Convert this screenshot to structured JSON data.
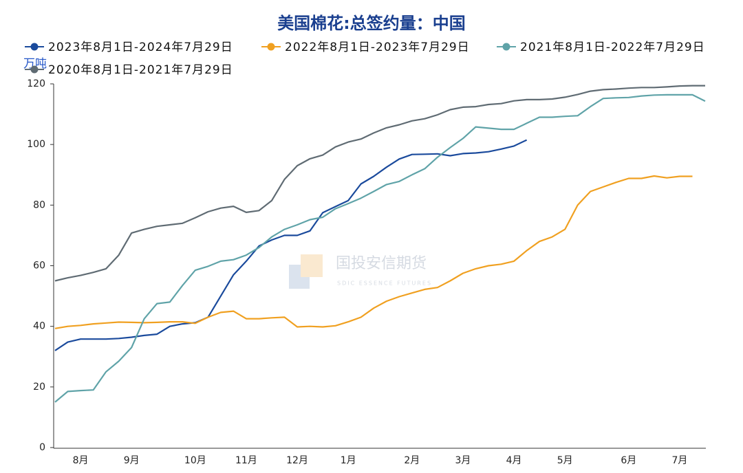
{
  "chart_data": {
    "type": "line",
    "title": "美国棉花:总签约量：中国",
    "y_label": "万吨",
    "watermark": "国投安信期货",
    "watermark_sub": "SDIC ESSENCE FUTURES",
    "categories": [
      null,
      null,
      "8月",
      null,
      null,
      null,
      "9月",
      null,
      null,
      null,
      null,
      "10月",
      null,
      null,
      null,
      "11月",
      null,
      null,
      null,
      "12月",
      null,
      null,
      null,
      "1月",
      null,
      null,
      null,
      null,
      "2月",
      null,
      null,
      null,
      "3月",
      null,
      null,
      null,
      "4月",
      null,
      null,
      null,
      "5月",
      null,
      null,
      null,
      null,
      "6月",
      null,
      null,
      null,
      "7月",
      null,
      null
    ],
    "ylim": [
      0,
      120
    ],
    "yticks": [
      0,
      20,
      40,
      60,
      80,
      100,
      120
    ],
    "grid": false,
    "series": [
      {
        "name": "2023年8月1日-2024年7月29日",
        "color": "#1a4a9c",
        "values": [
          32,
          34.8,
          35.8,
          35.8,
          35.8,
          36,
          36.4,
          37,
          37.4,
          40,
          40.8,
          41.2,
          43,
          50,
          57,
          61.5,
          66.5,
          68.5,
          70,
          70,
          71.5,
          77.5,
          79.5,
          81.5,
          87,
          89.5,
          92.5,
          95.2,
          96.7,
          96.8,
          96.9,
          96.3,
          97,
          97.2,
          97.6,
          98.5,
          99.5,
          101.5,
          null,
          null,
          null,
          null,
          null,
          null,
          null,
          null,
          null,
          null,
          null,
          null,
          null,
          null
        ]
      },
      {
        "name": "2022年8月1日-2023年7月29日",
        "color": "#f0a020",
        "values": [
          39.3,
          40,
          40.3,
          40.8,
          41.1,
          41.4,
          41.3,
          41.2,
          41.3,
          41.5,
          41.5,
          41,
          43,
          44.6,
          45,
          42.5,
          42.5,
          42.8,
          43,
          39.8,
          40,
          39.8,
          40.2,
          41.5,
          43,
          46,
          48.3,
          49.8,
          51,
          52.2,
          52.8,
          55,
          57.5,
          59,
          60,
          60.5,
          61.5,
          65,
          68,
          69.5,
          72,
          80,
          84.5,
          86,
          87.5,
          88.8,
          88.8,
          89.6,
          89,
          89.5,
          89.5,
          null
        ]
      },
      {
        "name": "2021年8月1日-2022年7月29日",
        "color": "#5fa3a8",
        "values": [
          15,
          18.5,
          18.8,
          19,
          25,
          28.5,
          33,
          42.5,
          47.5,
          48,
          53.5,
          58.5,
          59.8,
          61.5,
          62,
          63.5,
          66,
          69.5,
          72,
          73.5,
          75.2,
          76,
          78.8,
          80.5,
          82.3,
          84.5,
          86.8,
          87.8,
          90,
          92,
          95.8,
          99,
          102,
          105.8,
          105.4,
          105,
          105,
          107,
          109,
          109,
          109.3,
          109.5,
          112.5,
          115.2,
          115.4,
          115.5,
          116,
          116.3,
          116.4,
          116.4,
          116.4,
          114.3
        ]
      },
      {
        "name": "2020年8月1日-2021年7月29日",
        "color": "#5f6b73",
        "values": [
          55,
          56,
          56.8,
          57.8,
          59,
          63.5,
          70.8,
          72,
          73,
          73.5,
          74,
          75.8,
          77.8,
          79,
          79.6,
          77.6,
          78.2,
          81.5,
          88.5,
          93,
          95.3,
          96.5,
          99.2,
          100.8,
          101.8,
          103.8,
          105.5,
          106.5,
          107.8,
          108.5,
          109.8,
          111.5,
          112.3,
          112.5,
          113.2,
          113.5,
          114.4,
          114.8,
          114.8,
          115,
          115.6,
          116.5,
          117.6,
          118.1,
          118.3,
          118.6,
          118.8,
          118.8,
          119,
          119.3,
          119.4,
          119.4
        ]
      }
    ]
  }
}
